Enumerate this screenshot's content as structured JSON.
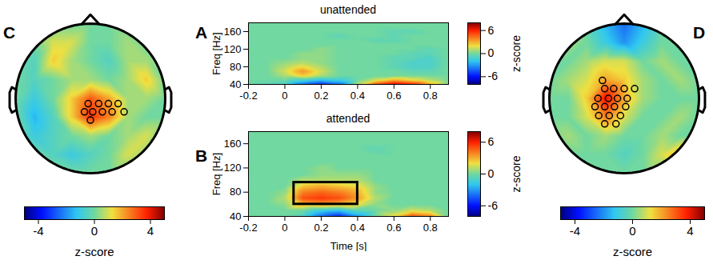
{
  "chart_data": [
    {
      "type": "topomap",
      "panel": "C",
      "x": [
        -1,
        -0.75,
        -0.5,
        -0.25,
        0,
        0.25,
        0.5,
        0.75,
        1
      ],
      "y": [
        1,
        0.75,
        0.5,
        0.25,
        0,
        -0.25,
        -0.5,
        -0.75,
        -1
      ],
      "z": [
        [
          0,
          0,
          0,
          0,
          0,
          0,
          0,
          0,
          0
        ],
        [
          0,
          0,
          1,
          1,
          0,
          0,
          0.5,
          0,
          0
        ],
        [
          0,
          -0.5,
          1.5,
          0.5,
          0,
          -0.5,
          0.5,
          0.5,
          0
        ],
        [
          0,
          -0.5,
          0,
          0.5,
          0.5,
          0,
          0.5,
          1.5,
          0
        ],
        [
          0,
          -1,
          0,
          1.5,
          3,
          2,
          0.5,
          0.5,
          0
        ],
        [
          0,
          -1.5,
          -0.5,
          1.5,
          3.5,
          2.5,
          0.5,
          0,
          0
        ],
        [
          0,
          -1,
          -0.5,
          0,
          0.5,
          0,
          0.5,
          1,
          0
        ],
        [
          0,
          0,
          -0.5,
          -1,
          -0.5,
          0,
          1,
          0.5,
          0
        ],
        [
          0,
          0,
          0,
          0,
          0,
          0,
          0,
          0,
          0
        ]
      ],
      "xlim": [
        -1.15,
        1.15
      ],
      "ylim": [
        -1.15,
        1.15
      ],
      "tick_labels": false,
      "electrodes": {
        "x": [
          -0.03,
          0.11,
          0.24,
          0.37,
          -0.08,
          0.03,
          0.16,
          0.29,
          0.45,
          0.0
        ],
        "y": [
          -0.07,
          -0.07,
          -0.07,
          -0.07,
          -0.18,
          -0.18,
          -0.18,
          -0.18,
          -0.18,
          -0.29
        ]
      },
      "colorbar": {
        "lim": [
          -5,
          5
        ],
        "ticks": [
          -4,
          0,
          4
        ],
        "label": "z-score"
      }
    },
    {
      "type": "heatmap",
      "panel": "A",
      "title": "unattended",
      "ylabel": "Freq [Hz]",
      "x": [
        -0.2,
        -0.1,
        0,
        0.1,
        0.2,
        0.3,
        0.4,
        0.5,
        0.6,
        0.7,
        0.8,
        0.9
      ],
      "y": [
        180,
        170,
        160,
        150,
        140,
        130,
        120,
        110,
        100,
        90,
        80,
        70,
        60,
        50,
        40
      ],
      "z": [
        [
          0,
          0,
          0,
          0,
          0,
          0,
          0,
          0,
          0,
          0,
          0,
          0
        ],
        [
          0,
          0,
          0,
          0,
          0,
          0,
          0,
          0,
          0,
          0,
          0,
          0
        ],
        [
          0,
          0,
          0,
          0,
          0,
          0,
          0,
          0,
          -0.5,
          -0.5,
          0,
          0
        ],
        [
          0,
          0,
          0,
          0,
          0,
          -0.5,
          0,
          0,
          -0.5,
          0,
          0,
          0
        ],
        [
          0,
          0,
          0,
          0,
          0,
          0,
          0,
          -0.5,
          -0.5,
          0,
          0,
          0
        ],
        [
          0,
          0,
          0,
          0,
          0,
          0,
          0,
          0,
          0,
          0,
          0,
          0
        ],
        [
          0,
          0,
          0,
          0,
          0.5,
          0,
          0,
          0,
          0,
          0,
          -0.5,
          0
        ],
        [
          0,
          0,
          0,
          0.5,
          0.5,
          0,
          0,
          0,
          0,
          -0.5,
          -0.5,
          0
        ],
        [
          0,
          0,
          0,
          0.5,
          0.5,
          0,
          0,
          0,
          -0.5,
          -0.5,
          -1,
          0
        ],
        [
          0,
          0,
          0.5,
          1,
          0.5,
          0,
          0,
          0,
          -0.5,
          -1,
          -1,
          0
        ],
        [
          0,
          0,
          1,
          2,
          1,
          0,
          0,
          0,
          -0.5,
          -1,
          -1,
          0
        ],
        [
          0,
          0,
          1.5,
          3.5,
          1.5,
          0,
          0,
          0,
          0,
          -0.5,
          -0.5,
          0
        ],
        [
          0,
          0,
          1,
          2.5,
          1,
          0,
          0,
          0,
          0,
          0,
          0,
          0
        ],
        [
          0,
          0,
          0,
          -1,
          -2,
          -1.5,
          0,
          1.5,
          3,
          2,
          1,
          0
        ],
        [
          0,
          -0.5,
          -1,
          -4,
          -5.5,
          -4,
          1,
          5,
          7,
          6,
          3,
          0
        ]
      ],
      "xlim": [
        -0.2,
        0.9
      ],
      "ylim": [
        40,
        180
      ],
      "xticks": [
        -0.2,
        0,
        0.2,
        0.4,
        0.6,
        0.8
      ],
      "yticks": [
        40,
        80,
        120,
        160
      ],
      "colorbar": {
        "lim": [
          -8,
          8
        ],
        "ticks": [
          -6,
          0,
          6
        ],
        "label": "z-score"
      }
    },
    {
      "type": "heatmap",
      "panel": "B",
      "title": "attended",
      "ylabel": "Freq [Hz]",
      "xlabel": "Time [s]",
      "x": [
        -0.2,
        -0.1,
        0,
        0.1,
        0.2,
        0.3,
        0.4,
        0.5,
        0.6,
        0.7,
        0.8,
        0.9
      ],
      "y": [
        180,
        170,
        160,
        150,
        140,
        130,
        120,
        110,
        100,
        90,
        80,
        70,
        60,
        50,
        40
      ],
      "z": [
        [
          0,
          0,
          0,
          0,
          0,
          0,
          0,
          0,
          0,
          0,
          0,
          0
        ],
        [
          0,
          0,
          0,
          0,
          0,
          0,
          0,
          0,
          0,
          0,
          0,
          0
        ],
        [
          0,
          0,
          0,
          0,
          0,
          0,
          0,
          0,
          0,
          0,
          0,
          0
        ],
        [
          0,
          0,
          0,
          0,
          0,
          0,
          0,
          -0.5,
          0,
          0,
          0,
          0
        ],
        [
          0,
          0,
          0,
          0,
          0,
          0,
          0,
          0,
          0,
          0,
          0,
          0
        ],
        [
          0,
          0,
          0,
          0,
          0,
          0,
          0,
          0,
          0,
          0,
          0,
          0
        ],
        [
          0,
          0,
          0,
          0,
          0.5,
          0,
          0,
          0,
          0,
          0,
          0,
          0
        ],
        [
          0,
          0,
          0,
          0,
          0.5,
          0.5,
          0.5,
          0,
          0,
          0,
          0,
          0
        ],
        [
          0,
          0,
          0,
          1,
          1,
          1,
          1,
          0,
          0,
          0,
          0,
          0
        ],
        [
          0,
          0,
          0,
          2.5,
          3,
          2.5,
          2,
          0.5,
          0,
          0,
          0,
          0
        ],
        [
          0,
          0,
          0.5,
          4,
          4.5,
          4,
          3,
          0.5,
          0,
          0,
          0,
          0
        ],
        [
          0,
          0,
          1,
          5,
          5.5,
          5,
          3.5,
          1,
          0,
          0,
          0,
          0
        ],
        [
          0,
          0,
          0.5,
          3,
          3.5,
          3,
          2,
          0.5,
          0,
          0,
          0,
          0
        ],
        [
          0,
          0,
          0,
          0,
          -1.5,
          -2,
          -0.5,
          0,
          0.5,
          1.5,
          1,
          0
        ],
        [
          0,
          0,
          0,
          -1,
          -4,
          -5.5,
          -3,
          0,
          2,
          5,
          4,
          0
        ]
      ],
      "xlim": [
        -0.2,
        0.9
      ],
      "ylim": [
        40,
        180
      ],
      "xticks": [
        -0.2,
        0,
        0.2,
        0.4,
        0.6,
        0.8
      ],
      "yticks": [
        40,
        80,
        120,
        160
      ],
      "box": {
        "x": [
          0.05,
          0.4
        ],
        "y": [
          60,
          96
        ]
      },
      "colorbar": {
        "lim": [
          -8,
          8
        ],
        "ticks": [
          -6,
          0,
          6
        ],
        "label": "z-score"
      }
    },
    {
      "type": "topomap",
      "panel": "D",
      "x": [
        -1,
        -0.75,
        -0.5,
        -0.25,
        0,
        0.25,
        0.5,
        0.75,
        1
      ],
      "y": [
        1,
        0.75,
        0.5,
        0.25,
        0,
        -0.25,
        -0.5,
        -0.75,
        -1
      ],
      "z": [
        [
          0,
          0,
          0,
          -1.5,
          -2.5,
          -1.5,
          0,
          0,
          0
        ],
        [
          0,
          0.5,
          0,
          -1,
          -2,
          -1,
          0,
          0,
          0
        ],
        [
          0,
          0,
          0.5,
          1,
          1,
          0,
          0.5,
          0,
          0
        ],
        [
          0,
          0.5,
          1,
          2,
          1.5,
          0.5,
          0,
          0.5,
          0
        ],
        [
          0,
          0,
          1.5,
          4,
          2,
          0.5,
          0,
          0,
          0
        ],
        [
          0,
          0,
          1,
          2.5,
          1,
          0,
          0,
          0.5,
          0
        ],
        [
          0,
          0.5,
          0,
          0.5,
          0,
          0,
          0.5,
          0,
          0
        ],
        [
          0,
          0,
          0,
          0,
          -0.5,
          0,
          1,
          2,
          0
        ],
        [
          0,
          0,
          0,
          0,
          0,
          0,
          0,
          0,
          0
        ]
      ],
      "xlim": [
        -1.15,
        1.15
      ],
      "ylim": [
        -1.15,
        1.15
      ],
      "tick_labels": false,
      "electrodes": {
        "x": [
          -0.29,
          -0.26,
          -0.14,
          0,
          0.14,
          -0.35,
          -0.21,
          -0.09,
          0.04,
          -0.39,
          -0.26,
          -0.13,
          0.02,
          -0.34,
          -0.2,
          -0.05,
          -0.26,
          -0.11
        ],
        "y": [
          0.24,
          0.13,
          0.13,
          0.13,
          0.13,
          0,
          0,
          0,
          0,
          -0.11,
          -0.11,
          -0.11,
          -0.11,
          -0.23,
          -0.23,
          -0.23,
          -0.34,
          -0.34
        ]
      },
      "colorbar": {
        "lim": [
          -5,
          5
        ],
        "ticks": [
          -4,
          0,
          4
        ],
        "label": "z-score"
      }
    }
  ]
}
